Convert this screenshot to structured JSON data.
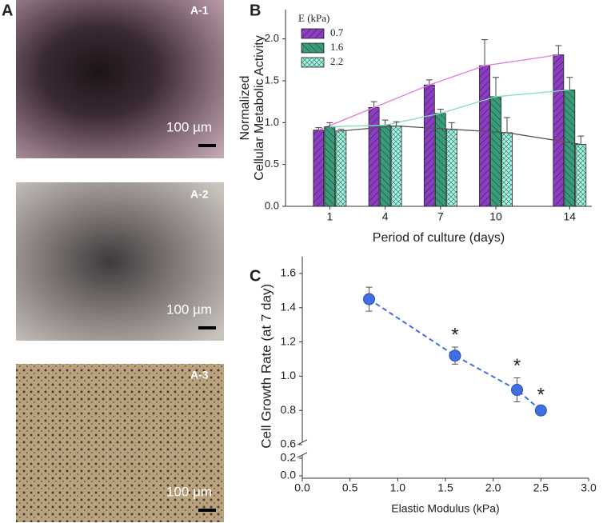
{
  "panel_labels": {
    "a": "A",
    "b": "B",
    "c": "C"
  },
  "panel_a": [
    {
      "label": "A-1",
      "scale_bar": "100 µm"
    },
    {
      "label": "A-2",
      "scale_bar": "100 µm"
    },
    {
      "label": "A-3",
      "scale_bar": "100 µm"
    }
  ],
  "chart_data": [
    {
      "type": "bar",
      "xlabel": "Period of culture (days)",
      "ylabel": [
        "Normalized",
        "Cellular Metabolic Activity"
      ],
      "legend_title": "E (kPa)",
      "legend": "upper left",
      "x": [
        1,
        4,
        7,
        10,
        14
      ],
      "xlim": [
        -1.4,
        15.2
      ],
      "xticks": [
        1,
        4,
        7,
        10,
        14
      ],
      "ylim": [
        0,
        2.35
      ],
      "yticks": [
        {
          "value": 0,
          "label": "0.0"
        },
        {
          "value": 0.5,
          "label": "0.5"
        },
        {
          "value": 1,
          "label": "1.0"
        },
        {
          "value": 1.5,
          "label": "1.5"
        },
        {
          "value": 2,
          "label": "2.0"
        }
      ],
      "series": [
        {
          "name": "0.7",
          "color": "#8b3fc0",
          "line_color": "#e07ae0",
          "values": [
            0.91,
            1.18,
            1.45,
            1.68,
            1.81
          ],
          "errors": [
            0.03,
            0.07,
            0.06,
            0.31,
            0.11
          ]
        },
        {
          "name": "1.6",
          "color": "#3a9b7a",
          "line_color": "#84dcb8",
          "values": [
            0.95,
            0.97,
            1.11,
            1.31,
            1.39
          ],
          "errors": [
            0.05,
            0.06,
            0.05,
            0.23,
            0.15
          ]
        },
        {
          "name": "2.2",
          "color": "#a8f2e2",
          "line_color": "#555555",
          "values": [
            0.9,
            0.96,
            0.92,
            0.88,
            0.74
          ],
          "errors": [
            0.02,
            0.05,
            0.08,
            0.18,
            0.1
          ]
        }
      ]
    },
    {
      "type": "scatter",
      "xlabel": "Elastic Modulus (kPa)",
      "ylabel": "Cell Growth Rate (at 7 day)",
      "x": [
        0.7,
        1.6,
        2.25,
        2.5
      ],
      "values": [
        1.45,
        1.12,
        0.92,
        0.8
      ],
      "errors": [
        0.07,
        0.05,
        0.07,
        0.02
      ],
      "color": "#3f6fe0",
      "line_style": "dashed",
      "annotations": [
        {
          "point": 1,
          "text": "*"
        },
        {
          "point": 2,
          "text": "*"
        },
        {
          "point": 3,
          "text": "*"
        }
      ],
      "xlim": [
        0,
        3
      ],
      "xticks": [
        {
          "value": 0,
          "label": "0.0"
        },
        {
          "value": 0.5,
          "label": "0.5"
        },
        {
          "value": 1,
          "label": "1.0"
        },
        {
          "value": 1.5,
          "label": "1.5"
        },
        {
          "value": 2,
          "label": "2.0"
        },
        {
          "value": 2.5,
          "label": "2.5"
        },
        {
          "value": 3,
          "label": "3.0"
        }
      ],
      "ylim": [
        0,
        1.7
      ],
      "ybreak": [
        0.2,
        0.6
      ],
      "yticks": [
        {
          "value": 0,
          "label": "0.0"
        },
        {
          "value": 0.2,
          "label": "0.2"
        },
        {
          "value": 0.6,
          "label": "0.6"
        },
        {
          "value": 0.8,
          "label": "0.8"
        },
        {
          "value": 1,
          "label": "1.0"
        },
        {
          "value": 1.2,
          "label": "1.2"
        },
        {
          "value": 1.4,
          "label": "1.4"
        },
        {
          "value": 1.6,
          "label": "1.6"
        }
      ]
    }
  ]
}
